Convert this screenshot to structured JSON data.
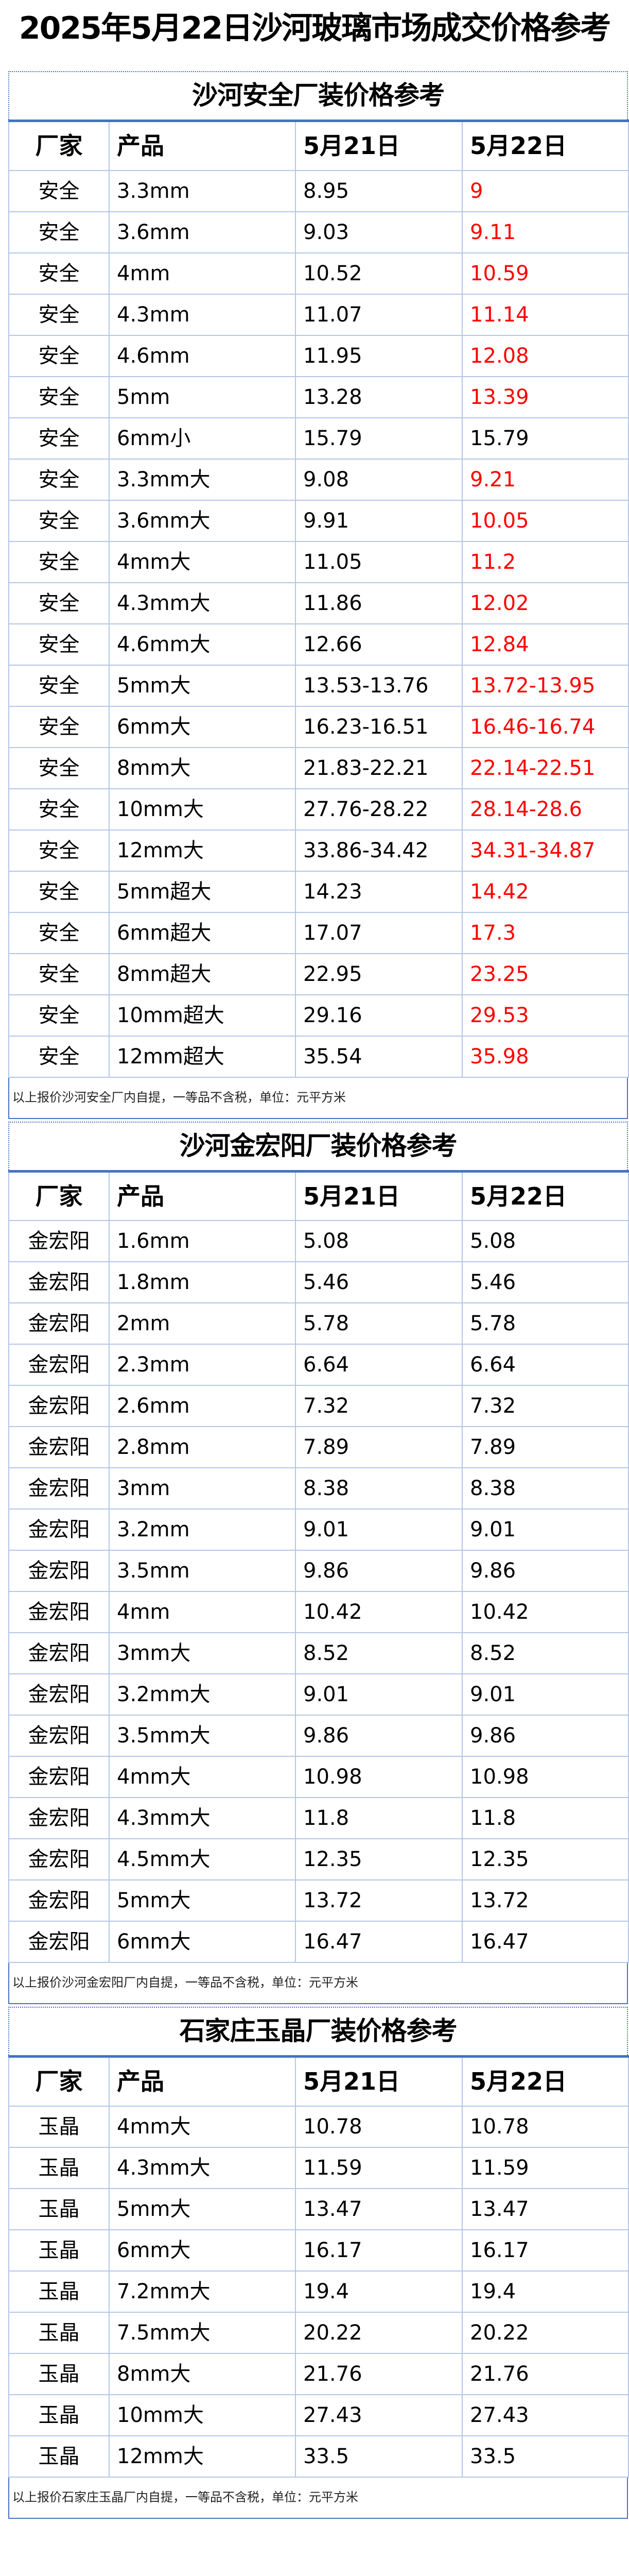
{
  "title": "2025年5月22日沙河玻璃市场成交价格参考",
  "headers": [
    "厂家",
    "产品",
    "5月21日",
    "5月22日"
  ],
  "colors": {
    "accent": "#4472c4",
    "grid": "#b4c6e7",
    "changed": "#ff0000"
  },
  "sections": [
    {
      "title": "沙河安全厂装价格参考",
      "footnote": "以上报价沙河安全厂内自提，一等品不含税，单位：元平方米",
      "rows": [
        {
          "factory": "安全",
          "product": "3.3mm",
          "may21": "8.95",
          "may22": "9",
          "changed": true
        },
        {
          "factory": "安全",
          "product": "3.6mm",
          "may21": "9.03",
          "may22": "9.11",
          "changed": true
        },
        {
          "factory": "安全",
          "product": "4mm",
          "may21": "10.52",
          "may22": "10.59",
          "changed": true
        },
        {
          "factory": "安全",
          "product": "4.3mm",
          "may21": "11.07",
          "may22": "11.14",
          "changed": true
        },
        {
          "factory": "安全",
          "product": "4.6mm",
          "may21": "11.95",
          "may22": "12.08",
          "changed": true
        },
        {
          "factory": "安全",
          "product": "5mm",
          "may21": "13.28",
          "may22": "13.39",
          "changed": true
        },
        {
          "factory": "安全",
          "product": "6mm小",
          "may21": "15.79",
          "may22": "15.79",
          "changed": false
        },
        {
          "factory": "安全",
          "product": "3.3mm大",
          "may21": "9.08",
          "may22": "9.21",
          "changed": true
        },
        {
          "factory": "安全",
          "product": "3.6mm大",
          "may21": "9.91",
          "may22": "10.05",
          "changed": true
        },
        {
          "factory": "安全",
          "product": "4mm大",
          "may21": "11.05",
          "may22": "11.2",
          "changed": true
        },
        {
          "factory": "安全",
          "product": "4.3mm大",
          "may21": "11.86",
          "may22": "12.02",
          "changed": true
        },
        {
          "factory": "安全",
          "product": "4.6mm大",
          "may21": "12.66",
          "may22": "12.84",
          "changed": true
        },
        {
          "factory": "安全",
          "product": "5mm大",
          "may21": "13.53-13.76",
          "may22": "13.72-13.95",
          "changed": true
        },
        {
          "factory": "安全",
          "product": "6mm大",
          "may21": "16.23-16.51",
          "may22": "16.46-16.74",
          "changed": true
        },
        {
          "factory": "安全",
          "product": "8mm大",
          "may21": "21.83-22.21",
          "may22": "22.14-22.51",
          "changed": true
        },
        {
          "factory": "安全",
          "product": "10mm大",
          "may21": "27.76-28.22",
          "may22": "28.14-28.6",
          "changed": true
        },
        {
          "factory": "安全",
          "product": "12mm大",
          "may21": "33.86-34.42",
          "may22": "34.31-34.87",
          "changed": true
        },
        {
          "factory": "安全",
          "product": "5mm超大",
          "may21": "14.23",
          "may22": "14.42",
          "changed": true
        },
        {
          "factory": "安全",
          "product": "6mm超大",
          "may21": "17.07",
          "may22": "17.3",
          "changed": true
        },
        {
          "factory": "安全",
          "product": "8mm超大",
          "may21": "22.95",
          "may22": "23.25",
          "changed": true
        },
        {
          "factory": "安全",
          "product": "10mm超大",
          "may21": "29.16",
          "may22": "29.53",
          "changed": true
        },
        {
          "factory": "安全",
          "product": "12mm超大",
          "may21": "35.54",
          "may22": "35.98",
          "changed": true
        }
      ]
    },
    {
      "title": "沙河金宏阳厂装价格参考",
      "footnote": "以上报价沙河金宏阳厂内自提，一等品不含税，单位：元平方米",
      "rows": [
        {
          "factory": "金宏阳",
          "product": "1.6mm",
          "may21": "5.08",
          "may22": "5.08",
          "changed": false
        },
        {
          "factory": "金宏阳",
          "product": "1.8mm",
          "may21": "5.46",
          "may22": "5.46",
          "changed": false
        },
        {
          "factory": "金宏阳",
          "product": "2mm",
          "may21": "5.78",
          "may22": "5.78",
          "changed": false
        },
        {
          "factory": "金宏阳",
          "product": "2.3mm",
          "may21": "6.64",
          "may22": "6.64",
          "changed": false
        },
        {
          "factory": "金宏阳",
          "product": "2.6mm",
          "may21": "7.32",
          "may22": "7.32",
          "changed": false
        },
        {
          "factory": "金宏阳",
          "product": "2.8mm",
          "may21": "7.89",
          "may22": "7.89",
          "changed": false
        },
        {
          "factory": "金宏阳",
          "product": "3mm",
          "may21": "8.38",
          "may22": "8.38",
          "changed": false
        },
        {
          "factory": "金宏阳",
          "product": "3.2mm",
          "may21": "9.01",
          "may22": "9.01",
          "changed": false
        },
        {
          "factory": "金宏阳",
          "product": "3.5mm",
          "may21": "9.86",
          "may22": "9.86",
          "changed": false
        },
        {
          "factory": "金宏阳",
          "product": "4mm",
          "may21": "10.42",
          "may22": "10.42",
          "changed": false
        },
        {
          "factory": "金宏阳",
          "product": "3mm大",
          "may21": "8.52",
          "may22": "8.52",
          "changed": false
        },
        {
          "factory": "金宏阳",
          "product": "3.2mm大",
          "may21": "9.01",
          "may22": "9.01",
          "changed": false
        },
        {
          "factory": "金宏阳",
          "product": "3.5mm大",
          "may21": "9.86",
          "may22": "9.86",
          "changed": false
        },
        {
          "factory": "金宏阳",
          "product": "4mm大",
          "may21": "10.98",
          "may22": "10.98",
          "changed": false
        },
        {
          "factory": "金宏阳",
          "product": "4.3mm大",
          "may21": "11.8",
          "may22": "11.8",
          "changed": false
        },
        {
          "factory": "金宏阳",
          "product": "4.5mm大",
          "may21": "12.35",
          "may22": "12.35",
          "changed": false
        },
        {
          "factory": "金宏阳",
          "product": "5mm大",
          "may21": "13.72",
          "may22": "13.72",
          "changed": false
        },
        {
          "factory": "金宏阳",
          "product": "6mm大",
          "may21": "16.47",
          "may22": "16.47",
          "changed": false
        }
      ]
    },
    {
      "title": "石家庄玉晶厂装价格参考",
      "footnote": "以上报价石家庄玉晶厂内自提，一等品不含税，单位：元平方米",
      "rows": [
        {
          "factory": "玉晶",
          "product": "4mm大",
          "may21": "10.78",
          "may22": "10.78",
          "changed": false
        },
        {
          "factory": "玉晶",
          "product": "4.3mm大",
          "may21": "11.59",
          "may22": "11.59",
          "changed": false
        },
        {
          "factory": "玉晶",
          "product": "5mm大",
          "may21": "13.47",
          "may22": "13.47",
          "changed": false
        },
        {
          "factory": "玉晶",
          "product": "6mm大",
          "may21": "16.17",
          "may22": "16.17",
          "changed": false
        },
        {
          "factory": "玉晶",
          "product": "7.2mm大",
          "may21": "19.4",
          "may22": "19.4",
          "changed": false
        },
        {
          "factory": "玉晶",
          "product": "7.5mm大",
          "may21": "20.22",
          "may22": "20.22",
          "changed": false
        },
        {
          "factory": "玉晶",
          "product": "8mm大",
          "may21": "21.76",
          "may22": "21.76",
          "changed": false
        },
        {
          "factory": "玉晶",
          "product": "10mm大",
          "may21": "27.43",
          "may22": "27.43",
          "changed": false
        },
        {
          "factory": "玉晶",
          "product": "12mm大",
          "may21": "33.5",
          "may22": "33.5",
          "changed": false
        }
      ]
    }
  ]
}
